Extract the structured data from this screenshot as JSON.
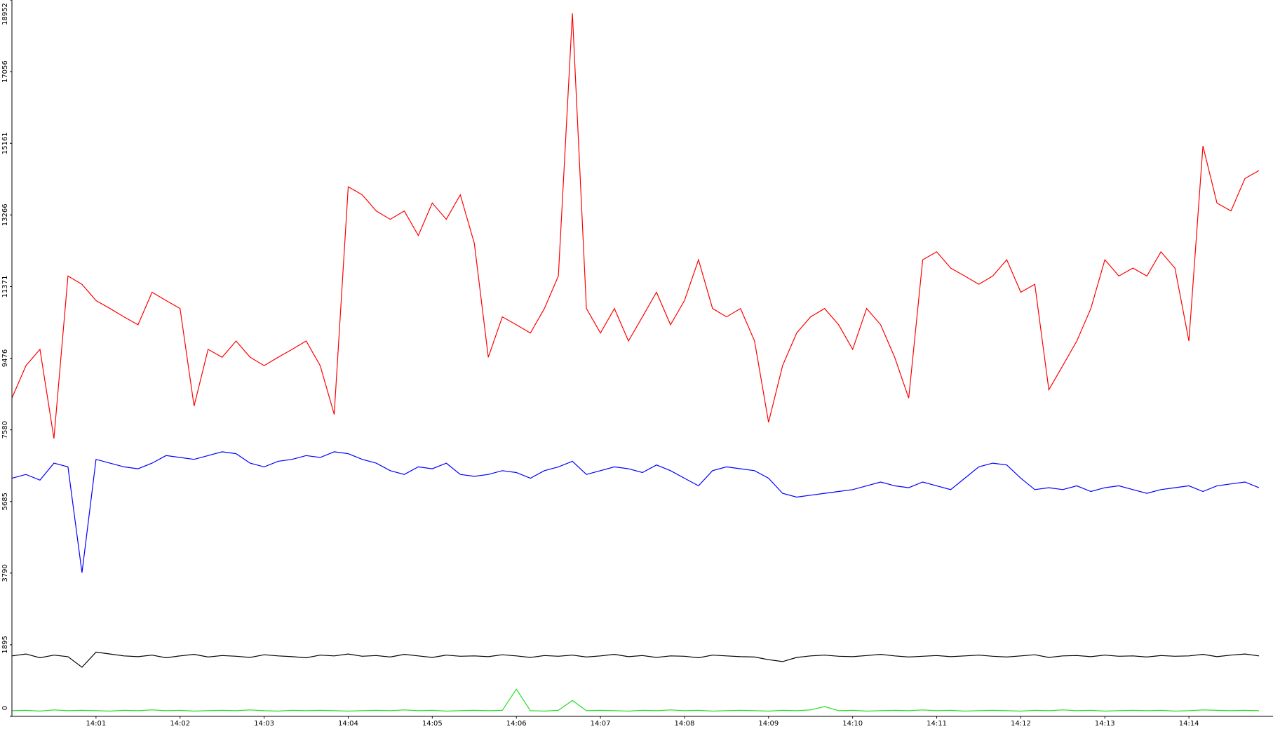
{
  "chart_data": {
    "type": "line",
    "categories": [
      null,
      null,
      null,
      null,
      null,
      null,
      "14:01",
      null,
      null,
      null,
      null,
      null,
      "14:02",
      null,
      null,
      null,
      null,
      null,
      "14:03",
      null,
      null,
      null,
      null,
      null,
      "14:04",
      null,
      null,
      null,
      null,
      null,
      "14:05",
      null,
      null,
      null,
      null,
      null,
      "14:06",
      null,
      null,
      null,
      null,
      null,
      "14:07",
      null,
      null,
      null,
      null,
      null,
      "14:08",
      null,
      null,
      null,
      null,
      null,
      "14:09",
      null,
      null,
      null,
      null,
      null,
      "14:10",
      null,
      null,
      null,
      null,
      null,
      "14:11",
      null,
      null,
      null,
      null,
      null,
      "14:12",
      null,
      null,
      null,
      null,
      null,
      "14:13",
      null,
      null,
      null,
      null,
      null,
      "14:14",
      null,
      null,
      null,
      null,
      null
    ],
    "series": [
      {
        "color": "#ff0000",
        "values": [
          8420,
          9280,
          9710,
          7350,
          11650,
          11430,
          11000,
          10790,
          10570,
          10360,
          11220,
          11000,
          10790,
          8210,
          9710,
          9500,
          9930,
          9500,
          9280,
          9500,
          9710,
          9930,
          9280,
          7990,
          14010,
          13800,
          13370,
          13150,
          13370,
          12720,
          13580,
          13150,
          13800,
          12510,
          9500,
          10570,
          10360,
          10140,
          10790,
          11650,
          18600,
          10790,
          10140,
          10790,
          9930,
          10570,
          11220,
          10360,
          11000,
          12080,
          10790,
          10570,
          10790,
          9930,
          7780,
          9280,
          10140,
          10570,
          10790,
          10360,
          9710,
          10790,
          10360,
          9500,
          8420,
          12080,
          12290,
          11860,
          11650,
          11430,
          11650,
          12080,
          11220,
          11430,
          8640,
          9280,
          9930,
          10790,
          12080,
          11650,
          11860,
          11650,
          12290,
          11860,
          9930,
          15090,
          13580,
          13370,
          14230,
          14440
        ]
      },
      {
        "color": "#0000ff",
        "values": [
          6300,
          6400,
          6250,
          6700,
          6600,
          3800,
          6800,
          6700,
          6600,
          6550,
          6700,
          6900,
          6850,
          6800,
          6900,
          7000,
          6950,
          6700,
          6600,
          6750,
          6800,
          6900,
          6850,
          7000,
          6950,
          6800,
          6700,
          6500,
          6400,
          6600,
          6550,
          6700,
          6400,
          6350,
          6400,
          6500,
          6450,
          6300,
          6500,
          6600,
          6750,
          6400,
          6500,
          6600,
          6550,
          6450,
          6650,
          6500,
          6300,
          6100,
          6500,
          6600,
          6550,
          6500,
          6300,
          5900,
          5800,
          5850,
          5900,
          5950,
          6000,
          6100,
          6200,
          6100,
          6050,
          6200,
          6100,
          6000,
          6300,
          6600,
          6700,
          6650,
          6300,
          6000,
          6050,
          6000,
          6100,
          5950,
          6050,
          6100,
          6000,
          5900,
          6000,
          6050,
          6100,
          5950,
          6100,
          6150,
          6200,
          6050
        ]
      },
      {
        "color": "#000000",
        "values": [
          1600,
          1650,
          1550,
          1620,
          1580,
          1300,
          1700,
          1650,
          1600,
          1580,
          1620,
          1550,
          1600,
          1640,
          1570,
          1610,
          1590,
          1560,
          1630,
          1600,
          1580,
          1550,
          1620,
          1600,
          1650,
          1590,
          1610,
          1570,
          1640,
          1600,
          1560,
          1620,
          1590,
          1600,
          1580,
          1630,
          1600,
          1560,
          1610,
          1590,
          1620,
          1570,
          1600,
          1640,
          1580,
          1610,
          1560,
          1600,
          1590,
          1550,
          1620,
          1600,
          1580,
          1570,
          1500,
          1450,
          1560,
          1600,
          1620,
          1590,
          1580,
          1610,
          1640,
          1600,
          1570,
          1590,
          1610,
          1580,
          1600,
          1620,
          1590,
          1570,
          1600,
          1630,
          1560,
          1600,
          1610,
          1580,
          1620,
          1590,
          1600,
          1570,
          1610,
          1590,
          1600,
          1640,
          1580,
          1620,
          1650,
          1600
        ]
      },
      {
        "color": "#22dd22",
        "values": [
          150,
          160,
          140,
          170,
          150,
          160,
          150,
          140,
          160,
          150,
          170,
          150,
          160,
          140,
          150,
          160,
          150,
          170,
          150,
          140,
          160,
          150,
          160,
          150,
          140,
          150,
          160,
          150,
          170,
          150,
          160,
          140,
          150,
          160,
          150,
          160,
          720,
          150,
          140,
          160,
          420,
          150,
          160,
          150,
          140,
          160,
          150,
          170,
          150,
          160,
          140,
          150,
          160,
          150,
          140,
          160,
          150,
          170,
          260,
          150,
          160,
          140,
          150,
          160,
          150,
          170,
          150,
          160,
          140,
          150,
          160,
          150,
          140,
          160,
          150,
          170,
          150,
          160,
          140,
          150,
          160,
          150,
          160,
          140,
          150,
          170,
          160,
          150,
          160,
          150
        ]
      }
    ],
    "ylim": [
      0,
      18952
    ],
    "yticks": [
      0,
      1895,
      3790,
      5685,
      7580,
      9476,
      11371,
      13266,
      15161,
      17056,
      18952
    ],
    "grid": false
  }
}
